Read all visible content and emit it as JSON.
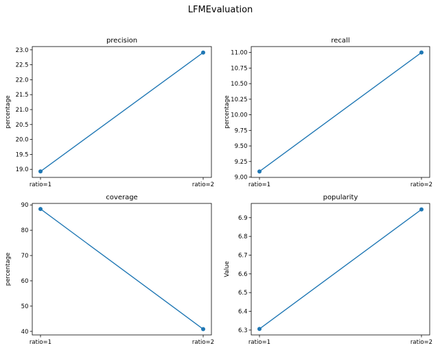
{
  "figure_title": "LFMEvaluation",
  "chart_data": [
    {
      "type": "line",
      "title": "precision",
      "xlabel": "",
      "ylabel": "percentage",
      "categories": [
        "ratio=1",
        "ratio=2"
      ],
      "values": [
        18.93,
        22.91
      ],
      "ylim": [
        18.73,
        23.11
      ],
      "yticks": [
        19.0,
        19.5,
        20.0,
        20.5,
        21.0,
        21.5,
        22.0,
        22.5,
        23.0
      ],
      "ytick_labels": [
        "19.0",
        "19.5",
        "20.0",
        "20.5",
        "21.0",
        "21.5",
        "22.0",
        "22.5",
        "23.0"
      ],
      "color": "#1f77b4",
      "marker": "circle",
      "grid": false
    },
    {
      "type": "line",
      "title": "recall",
      "xlabel": "",
      "ylabel": "percentage",
      "categories": [
        "ratio=1",
        "ratio=2"
      ],
      "values": [
        9.09,
        11.0
      ],
      "ylim": [
        8.995,
        11.095
      ],
      "yticks": [
        9.0,
        9.25,
        9.5,
        9.75,
        10.0,
        10.25,
        10.5,
        10.75,
        11.0
      ],
      "ytick_labels": [
        "9.00",
        "9.25",
        "9.50",
        "9.75",
        "10.00",
        "10.25",
        "10.50",
        "10.75",
        "11.00"
      ],
      "color": "#1f77b4",
      "marker": "circle",
      "grid": false
    },
    {
      "type": "line",
      "title": "coverage",
      "xlabel": "",
      "ylabel": "percentage",
      "categories": [
        "ratio=1",
        "ratio=2"
      ],
      "values": [
        88.4,
        40.9
      ],
      "ylim": [
        38.6,
        90.6
      ],
      "yticks": [
        40,
        50,
        60,
        70,
        80,
        90
      ],
      "ytick_labels": [
        "40",
        "50",
        "60",
        "70",
        "80",
        "90"
      ],
      "color": "#1f77b4",
      "marker": "circle",
      "grid": false
    },
    {
      "type": "line",
      "title": "popularity",
      "xlabel": "",
      "ylabel": "Value",
      "categories": [
        "ratio=1",
        "ratio=2"
      ],
      "values": [
        6.306,
        6.944
      ],
      "ylim": [
        6.274,
        6.976
      ],
      "yticks": [
        6.3,
        6.4,
        6.5,
        6.6,
        6.7,
        6.8,
        6.9
      ],
      "ytick_labels": [
        "6.3",
        "6.4",
        "6.5",
        "6.6",
        "6.7",
        "6.8",
        "6.9"
      ],
      "color": "#1f77b4",
      "marker": "circle",
      "grid": false
    }
  ]
}
